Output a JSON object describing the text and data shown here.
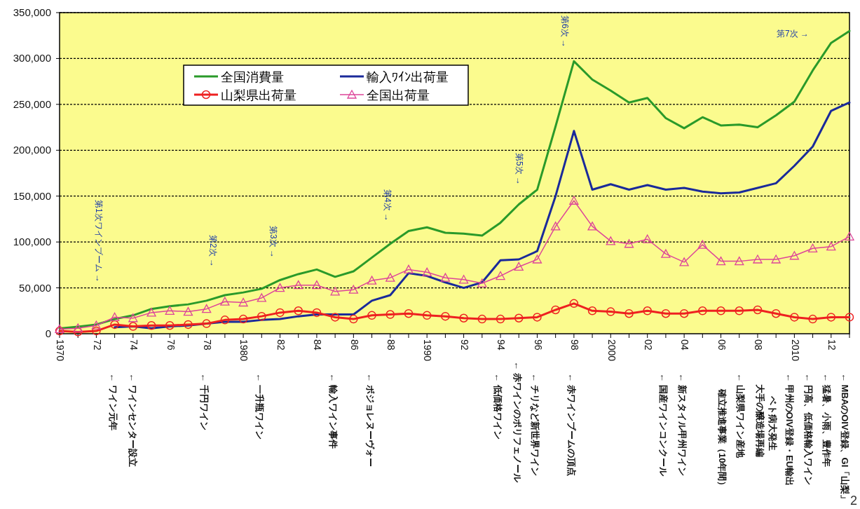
{
  "chart_data": {
    "type": "line",
    "x": [
      1970,
      1971,
      1972,
      1973,
      1974,
      1975,
      1976,
      1977,
      1978,
      1979,
      1980,
      1981,
      1982,
      1983,
      1984,
      1985,
      1986,
      1987,
      1988,
      1989,
      1990,
      1991,
      1992,
      1993,
      1994,
      1995,
      1996,
      1997,
      1998,
      1999,
      2000,
      2001,
      2002,
      2003,
      2004,
      2005,
      2006,
      2007,
      2008,
      2009,
      2010,
      2011,
      2012,
      2013
    ],
    "xlim": [
      1970,
      2013
    ],
    "xticks": [
      {
        "value": 1970,
        "label": "1970"
      },
      {
        "value": 1971,
        "label": null
      },
      {
        "value": 1972,
        "label": "72"
      },
      {
        "value": 1973,
        "label": null
      },
      {
        "value": 1974,
        "label": "74"
      },
      {
        "value": 1975,
        "label": null
      },
      {
        "value": 1976,
        "label": "76"
      },
      {
        "value": 1977,
        "label": null
      },
      {
        "value": 1978,
        "label": "78"
      },
      {
        "value": 1979,
        "label": null
      },
      {
        "value": 1980,
        "label": "1980"
      },
      {
        "value": 1981,
        "label": null
      },
      {
        "value": 1982,
        "label": "82"
      },
      {
        "value": 1983,
        "label": null
      },
      {
        "value": 1984,
        "label": "84"
      },
      {
        "value": 1985,
        "label": null
      },
      {
        "value": 1986,
        "label": "86"
      },
      {
        "value": 1987,
        "label": null
      },
      {
        "value": 1988,
        "label": "88"
      },
      {
        "value": 1989,
        "label": null
      },
      {
        "value": 1990,
        "label": "1990"
      },
      {
        "value": 1991,
        "label": null
      },
      {
        "value": 1992,
        "label": "92"
      },
      {
        "value": 1993,
        "label": null
      },
      {
        "value": 1994,
        "label": "94"
      },
      {
        "value": 1995,
        "label": null
      },
      {
        "value": 1996,
        "label": "96"
      },
      {
        "value": 1997,
        "label": null
      },
      {
        "value": 1998,
        "label": "98"
      },
      {
        "value": 1999,
        "label": null
      },
      {
        "value": 2000,
        "label": "2000"
      },
      {
        "value": 2001,
        "label": null
      },
      {
        "value": 2002,
        "label": "02"
      },
      {
        "value": 2003,
        "label": null
      },
      {
        "value": 2004,
        "label": "04"
      },
      {
        "value": 2005,
        "label": null
      },
      {
        "value": 2006,
        "label": "06"
      },
      {
        "value": 2007,
        "label": null
      },
      {
        "value": 2008,
        "label": "08"
      },
      {
        "value": 2009,
        "label": null
      },
      {
        "value": 2010,
        "label": "2010"
      },
      {
        "value": 2011,
        "label": null
      },
      {
        "value": 2012,
        "label": "12"
      },
      {
        "value": 2013,
        "label": null
      }
    ],
    "ylim": [
      0,
      350000
    ],
    "yticks": [
      0,
      {
        "value": 50000,
        "label": "50,000"
      },
      {
        "value": 100000,
        "label": "100,000"
      },
      {
        "value": 150000,
        "label": "150,000"
      },
      {
        "value": 200000,
        "label": "200,000"
      },
      {
        "value": 250000,
        "label": "250,000"
      },
      {
        "value": 300000,
        "label": "300,000"
      },
      {
        "value": 350000,
        "label": "350,000"
      }
    ],
    "grid": "y",
    "legend": "top left",
    "series": [
      {
        "name": "全国消費量",
        "color": "#2a9a2a",
        "marker": "none",
        "values": [
          5800,
          7600,
          10000,
          16000,
          20000,
          27000,
          30000,
          32000,
          36000,
          42000,
          45000,
          49000,
          58500,
          65000,
          70000,
          62000,
          68000,
          83000,
          98000,
          112000,
          116000,
          110000,
          109000,
          107000,
          121000,
          141000,
          157000,
          226000,
          297000,
          277000,
          265000,
          252000,
          257000,
          235000,
          224000,
          236000,
          227000,
          228000,
          225000,
          238000,
          253000,
          287000,
          317000,
          330000
        ]
      },
      {
        "name": "輸入ﾜｲﾝ出荷量",
        "color": "#1a2a9a",
        "marker": "none",
        "values": [
          null,
          null,
          null,
          7000,
          8000,
          6000,
          8000,
          9000,
          11000,
          13000,
          13000,
          15000,
          16000,
          19000,
          21000,
          21000,
          21000,
          36000,
          42000,
          66000,
          63000,
          56000,
          50000,
          56000,
          80000,
          81000,
          90000,
          150000,
          221000,
          157000,
          163000,
          157000,
          162000,
          157000,
          159000,
          155000,
          153000,
          154000,
          159000,
          164000,
          183000,
          204000,
          243000,
          252000
        ]
      },
      {
        "name": "山梨県出荷量",
        "color": "#ee2020",
        "marker": "circle",
        "values": [
          3000,
          2000,
          3000,
          10000,
          8000,
          9000,
          9000,
          10000,
          11000,
          15000,
          16000,
          19000,
          23000,
          25000,
          23000,
          18000,
          16000,
          20000,
          21000,
          22000,
          20000,
          19000,
          17000,
          16000,
          16000,
          17000,
          18000,
          26000,
          33000,
          25000,
          24000,
          22000,
          25000,
          22000,
          22000,
          25000,
          25000,
          25000,
          26000,
          22000,
          18000,
          16000,
          18000,
          18000
        ]
      },
      {
        "name": "全国出荷量",
        "color": "#dd4499",
        "marker": "triangle",
        "values": [
          5000,
          6000,
          9000,
          18000,
          17000,
          23000,
          25000,
          24000,
          27000,
          35000,
          34000,
          39000,
          50000,
          53000,
          53000,
          46000,
          48000,
          58000,
          61000,
          70000,
          67000,
          61000,
          59000,
          55000,
          63000,
          73000,
          81000,
          117000,
          145000,
          117000,
          101000,
          98000,
          103000,
          87000,
          78000,
          97000,
          79000,
          79000,
          81000,
          81000,
          85000,
          93000,
          95000,
          106000
        ]
      }
    ],
    "annotations": [
      "第1次ワインブーム →",
      "第2次 →",
      "第3次 →",
      "第4次 →",
      "第5次 →",
      "第6次 →",
      "第7次 →",
      "← ワイン元年",
      "← ワインセンター設立",
      "← 千円ワイン",
      "← 一升瓶ワイン",
      "← 輸入ワイン事件",
      "← ボジョレヌーヴォー",
      "← 低価格ワイン",
      "← 赤ワインのポリフェノール",
      "← チリなど新世界ワイン",
      "← 赤ワインブームの頂点",
      "← 国産ワインコンクール",
      "← 新スタイル甲州ワイン",
      "← 山梨県ワイン産地",
      "確立推進事業（10年間）",
      "← 甲州のOIV登録・EU輸出",
      "ベト病大発生",
      "大手の醸造場再編",
      "← 円高、低価格輸入ワイン",
      "← 猛暑、小雨、豊作年",
      "← MBAのOIV登録、GI「山梨」",
      "2"
    ]
  }
}
